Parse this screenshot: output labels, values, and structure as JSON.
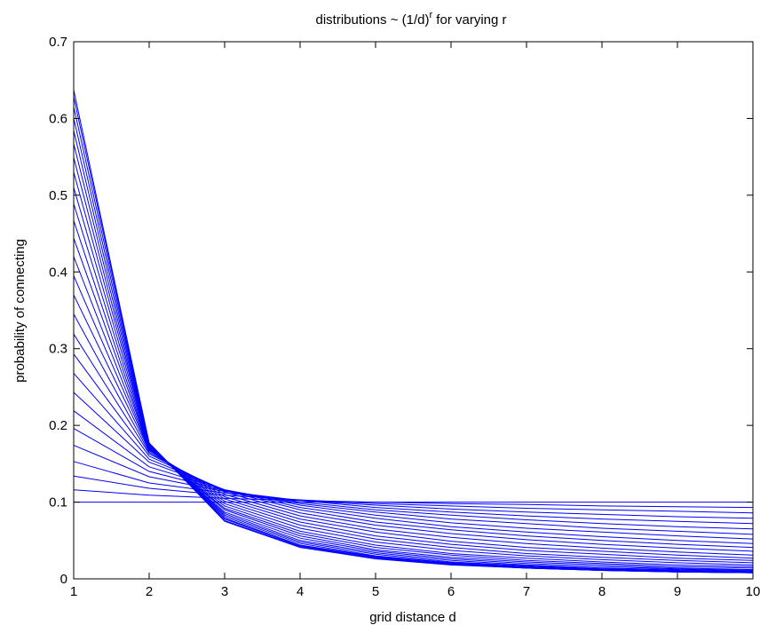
{
  "chart_data": {
    "type": "line",
    "title": {
      "main": "distributions ~ (1/d)",
      "superscript": "r",
      "suffix": " for varying r"
    },
    "xlabel": "grid distance d",
    "ylabel": "probability of connecting",
    "xlim": [
      1,
      10
    ],
    "ylim": [
      0,
      0.7
    ],
    "xticks": [
      1,
      2,
      3,
      4,
      5,
      6,
      7,
      8,
      9,
      10
    ],
    "yticks": [
      0,
      0.1,
      0.2,
      0.3,
      0.4,
      0.5,
      0.6,
      0.7
    ],
    "ytick_labels": [
      "0",
      "0.1",
      "0.2",
      "0.3",
      "0.4",
      "0.5",
      "0.6",
      "0.7"
    ],
    "grid": false,
    "line_color": "#0000ff",
    "x": [
      1,
      2,
      3,
      4,
      5,
      6,
      7,
      8,
      9,
      10
    ],
    "series": [
      {
        "values": [
          0.1,
          0.1,
          0.1,
          0.1,
          0.1,
          0.1,
          0.1,
          0.1,
          0.1,
          0.1
        ]
      },
      {
        "values": [
          0.116,
          0.109,
          0.105,
          0.102,
          0.1,
          0.098,
          0.097,
          0.095,
          0.094,
          0.093
        ]
      },
      {
        "values": [
          0.134,
          0.118,
          0.109,
          0.103,
          0.098,
          0.095,
          0.092,
          0.09,
          0.088,
          0.086
        ]
      },
      {
        "values": [
          0.153,
          0.125,
          0.112,
          0.102,
          0.096,
          0.091,
          0.087,
          0.084,
          0.081,
          0.079
        ]
      },
      {
        "values": [
          0.174,
          0.133,
          0.114,
          0.102,
          0.093,
          0.087,
          0.082,
          0.078,
          0.075,
          0.072
        ]
      },
      {
        "values": [
          0.196,
          0.14,
          0.115,
          0.1,
          0.09,
          0.083,
          0.077,
          0.072,
          0.068,
          0.065
        ]
      },
      {
        "values": [
          0.219,
          0.146,
          0.116,
          0.098,
          0.087,
          0.078,
          0.072,
          0.066,
          0.062,
          0.058
        ]
      },
      {
        "values": [
          0.243,
          0.152,
          0.116,
          0.096,
          0.083,
          0.073,
          0.066,
          0.061,
          0.056,
          0.052
        ]
      },
      {
        "values": [
          0.268,
          0.156,
          0.116,
          0.093,
          0.079,
          0.068,
          0.061,
          0.055,
          0.05,
          0.046
        ]
      },
      {
        "values": [
          0.293,
          0.16,
          0.115,
          0.09,
          0.074,
          0.064,
          0.056,
          0.05,
          0.045,
          0.041
        ]
      },
      {
        "values": [
          0.319,
          0.163,
          0.113,
          0.086,
          0.07,
          0.059,
          0.051,
          0.045,
          0.04,
          0.036
        ]
      },
      {
        "values": [
          0.345,
          0.165,
          0.11,
          0.082,
          0.065,
          0.054,
          0.046,
          0.04,
          0.035,
          0.031
        ]
      },
      {
        "values": [
          0.37,
          0.167,
          0.107,
          0.078,
          0.061,
          0.049,
          0.041,
          0.036,
          0.031,
          0.027
        ]
      },
      {
        "values": [
          0.395,
          0.168,
          0.104,
          0.074,
          0.056,
          0.045,
          0.037,
          0.032,
          0.027,
          0.024
        ]
      },
      {
        "values": [
          0.42,
          0.168,
          0.101,
          0.07,
          0.052,
          0.041,
          0.033,
          0.028,
          0.024,
          0.021
        ]
      },
      {
        "values": [
          0.444,
          0.169,
          0.098,
          0.066,
          0.048,
          0.037,
          0.03,
          0.025,
          0.021,
          0.018
        ]
      },
      {
        "values": [
          0.467,
          0.169,
          0.095,
          0.062,
          0.044,
          0.033,
          0.027,
          0.022,
          0.018,
          0.016
        ]
      },
      {
        "values": [
          0.489,
          0.17,
          0.092,
          0.059,
          0.041,
          0.031,
          0.024,
          0.02,
          0.016,
          0.014
        ]
      },
      {
        "values": [
          0.51,
          0.171,
          0.09,
          0.056,
          0.038,
          0.028,
          0.022,
          0.018,
          0.014,
          0.012
        ]
      },
      {
        "values": [
          0.53,
          0.172,
          0.087,
          0.053,
          0.036,
          0.026,
          0.02,
          0.016,
          0.013,
          0.011
        ]
      },
      {
        "values": [
          0.549,
          0.172,
          0.085,
          0.05,
          0.034,
          0.024,
          0.018,
          0.014,
          0.012,
          0.01
        ]
      },
      {
        "values": [
          0.567,
          0.173,
          0.083,
          0.048,
          0.032,
          0.022,
          0.017,
          0.013,
          0.011,
          0.009
        ]
      },
      {
        "values": [
          0.584,
          0.174,
          0.081,
          0.046,
          0.03,
          0.021,
          0.016,
          0.012,
          0.01,
          0.008
        ]
      },
      {
        "values": [
          0.6,
          0.175,
          0.079,
          0.044,
          0.029,
          0.02,
          0.015,
          0.012,
          0.01,
          0.008
        ]
      },
      {
        "values": [
          0.615,
          0.176,
          0.078,
          0.043,
          0.028,
          0.019,
          0.014,
          0.011,
          0.009,
          0.008
        ]
      },
      {
        "values": [
          0.628,
          0.177,
          0.076,
          0.042,
          0.027,
          0.019,
          0.014,
          0.011,
          0.009,
          0.008
        ]
      },
      {
        "values": [
          0.637,
          0.177,
          0.075,
          0.041,
          0.026,
          0.018,
          0.014,
          0.011,
          0.009,
          0.008
        ]
      }
    ]
  }
}
